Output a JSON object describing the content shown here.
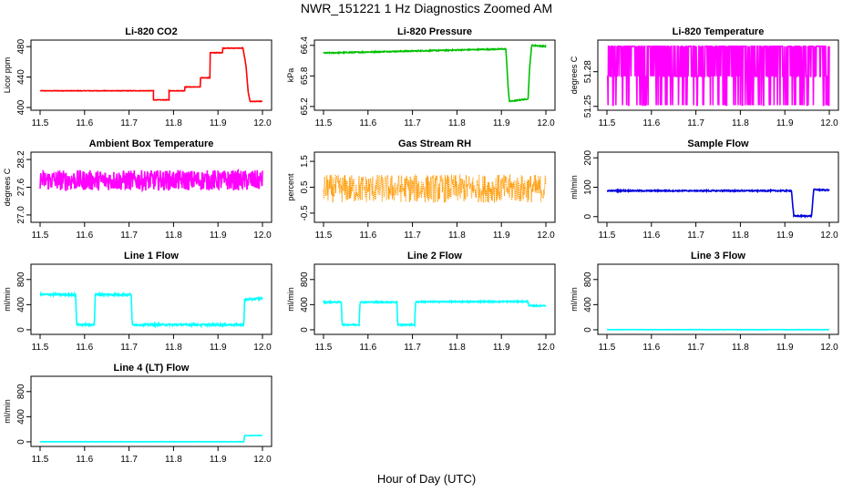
{
  "page": {
    "title": "NWR_151221  1 Hz Diagnostics Zoomed AM",
    "x_caption": "Hour of Day (UTC)"
  },
  "chart_data": [
    {
      "type": "line",
      "title": "Li-820 CO2",
      "ylabel": "Licor ppm",
      "color": "#ff0000",
      "xlim": [
        11.5,
        12.0
      ],
      "ylim": [
        400,
        485
      ],
      "x_ticks": [
        "11.5",
        "11.6",
        "11.7",
        "11.8",
        "11.9",
        "12.0"
      ],
      "y_ticks": [
        {
          "value": 400,
          "label": "400"
        },
        {
          "value": 440,
          "label": "440"
        },
        {
          "value": 480,
          "label": "480"
        }
      ],
      "noise": 0.3,
      "segments": [
        {
          "x": [
            11.5,
            11.755
          ],
          "y": [
            422,
            422
          ]
        },
        {
          "x": [
            11.755,
            11.755,
            11.79,
            11.79
          ],
          "y": [
            422,
            410,
            410,
            422
          ]
        },
        {
          "x": [
            11.79,
            11.825,
            11.825,
            11.86,
            11.86,
            11.882,
            11.882,
            11.91,
            11.91,
            11.956,
            11.963,
            11.968,
            11.972,
            12.0
          ],
          "y": [
            422,
            422,
            427,
            427,
            439,
            439,
            472,
            472,
            478,
            478,
            455,
            420,
            408,
            408
          ]
        }
      ]
    },
    {
      "type": "line",
      "title": "Li-820 Pressure",
      "ylabel": "kPa",
      "color": "#00c000",
      "xlim": [
        11.5,
        12.0
      ],
      "ylim": [
        65.18,
        66.45
      ],
      "x_ticks": [
        "11.5",
        "11.6",
        "11.7",
        "11.8",
        "11.9",
        "12.0"
      ],
      "y_ticks": [
        {
          "value": 65.2,
          "label": "65.2"
        },
        {
          "value": 65.8,
          "label": "65.8"
        },
        {
          "value": 66.4,
          "label": "66.4"
        }
      ],
      "noise": 0.01,
      "segments": [
        {
          "x": [
            11.5,
            11.91,
            11.915,
            11.918,
            11.96,
            11.963,
            11.968,
            12.0
          ],
          "y": [
            66.25,
            66.33,
            65.6,
            65.3,
            65.35,
            65.9,
            66.4,
            66.38
          ]
        }
      ]
    },
    {
      "type": "line",
      "title": "Li-820 Temperature",
      "ylabel": "degrees C",
      "color": "#ff00ff",
      "xlim": [
        11.5,
        12.0
      ],
      "ylim": [
        51.249,
        51.305
      ],
      "x_ticks": [
        "11.5",
        "11.6",
        "11.7",
        "11.8",
        "11.9",
        "12.0"
      ],
      "y_ticks": [
        {
          "value": 51.25,
          "label": "51.25"
        },
        {
          "value": 51.28,
          "label": "51.28"
        }
      ],
      "quantized": [
        51.251,
        51.276,
        51.302
      ],
      "segments": [
        {
          "x": [
            11.5,
            12.0
          ],
          "y": [
            51.276,
            51.276
          ]
        }
      ]
    },
    {
      "type": "line",
      "title": "Ambient Box Temperature",
      "ylabel": "degrees C",
      "color": "#ff00ff",
      "xlim": [
        11.5,
        12.0
      ],
      "ylim": [
        26.9,
        28.3
      ],
      "x_ticks": [
        "11.5",
        "11.6",
        "11.7",
        "11.8",
        "11.9",
        "12.0"
      ],
      "y_ticks": [
        {
          "value": 27.0,
          "label": "27.0"
        },
        {
          "value": 27.6,
          "label": "27.6"
        },
        {
          "value": 28.2,
          "label": "28.2"
        }
      ],
      "noise": 0.22,
      "segments": [
        {
          "x": [
            11.5,
            12.0
          ],
          "y": [
            27.75,
            27.75
          ]
        }
      ]
    },
    {
      "type": "line",
      "title": "Gas Stream RH",
      "ylabel": "percent",
      "color": "#ff9900",
      "xlim": [
        11.5,
        12.0
      ],
      "ylim": [
        -0.75,
        1.75
      ],
      "x_ticks": [
        "11.5",
        "11.6",
        "11.7",
        "11.8",
        "11.9",
        "12.0"
      ],
      "y_ticks": [
        {
          "value": -0.5,
          "label": "-0.5"
        },
        {
          "value": 0.5,
          "label": "0.5"
        },
        {
          "value": 1.5,
          "label": "1.5"
        }
      ],
      "noise": 0.55,
      "dotted": true,
      "segments": [
        {
          "x": [
            11.5,
            12.0
          ],
          "y": [
            0.45,
            0.45
          ]
        }
      ]
    },
    {
      "type": "line",
      "title": "Sample Flow",
      "ylabel": "ml/min",
      "color": "#0000dd",
      "xlim": [
        11.5,
        12.0
      ],
      "ylim": [
        -10,
        210
      ],
      "x_ticks": [
        "11.5",
        "11.6",
        "11.7",
        "11.8",
        "11.9",
        "12.0"
      ],
      "y_ticks": [
        {
          "value": 0,
          "label": "0"
        },
        {
          "value": 100,
          "label": "100"
        },
        {
          "value": 200,
          "label": "200"
        }
      ],
      "noise": 2,
      "segments": [
        {
          "x": [
            11.5,
            11.915,
            11.92,
            11.96,
            11.965,
            12.0
          ],
          "y": [
            88,
            88,
            2,
            2,
            92,
            90
          ]
        }
      ]
    },
    {
      "type": "line",
      "title": "Line 1 Flow",
      "ylabel": "ml/min",
      "color": "#00ffff",
      "xlim": [
        11.5,
        12.0
      ],
      "ylim": [
        -30,
        1000
      ],
      "x_ticks": [
        "11.5",
        "11.6",
        "11.7",
        "11.8",
        "11.9",
        "12.0"
      ],
      "y_ticks": [
        {
          "value": 0,
          "label": "0"
        },
        {
          "value": 400,
          "label": "400"
        },
        {
          "value": 800,
          "label": "800"
        }
      ],
      "noise": 15,
      "segments": [
        {
          "x": [
            11.5,
            11.58,
            11.582,
            11.622,
            11.624,
            11.705,
            11.707,
            11.958,
            11.96,
            12.0
          ],
          "y": [
            560,
            560,
            80,
            80,
            560,
            560,
            80,
            80,
            480,
            500
          ]
        }
      ]
    },
    {
      "type": "line",
      "title": "Line 2 Flow",
      "ylabel": "ml/min",
      "color": "#00ffff",
      "xlim": [
        11.5,
        12.0
      ],
      "ylim": [
        -30,
        1000
      ],
      "x_ticks": [
        "11.5",
        "11.6",
        "11.7",
        "11.8",
        "11.9",
        "12.0"
      ],
      "y_ticks": [
        {
          "value": 0,
          "label": "0"
        },
        {
          "value": 400,
          "label": "400"
        },
        {
          "value": 800,
          "label": "800"
        }
      ],
      "noise": 10,
      "segments": [
        {
          "x": [
            11.5,
            11.54,
            11.542,
            11.58,
            11.582,
            11.665,
            11.667,
            11.705,
            11.707,
            11.96,
            11.962,
            12.0
          ],
          "y": [
            440,
            440,
            80,
            80,
            440,
            440,
            80,
            80,
            445,
            450,
            380,
            385
          ]
        }
      ]
    },
    {
      "type": "line",
      "title": "Line 3 Flow",
      "ylabel": "ml/min",
      "color": "#00ffff",
      "xlim": [
        11.5,
        12.0
      ],
      "ylim": [
        -30,
        1000
      ],
      "x_ticks": [
        "11.5",
        "11.6",
        "11.7",
        "11.8",
        "11.9",
        "12.0"
      ],
      "y_ticks": [
        {
          "value": 0,
          "label": "0"
        },
        {
          "value": 400,
          "label": "400"
        },
        {
          "value": 800,
          "label": "800"
        }
      ],
      "noise": 2,
      "segments": [
        {
          "x": [
            11.5,
            12.0
          ],
          "y": [
            2,
            2
          ]
        }
      ]
    },
    {
      "type": "line",
      "title": "Line 4 (LT) Flow",
      "ylabel": "ml/min",
      "color": "#00ffff",
      "xlim": [
        11.5,
        12.0
      ],
      "ylim": [
        -30,
        1000
      ],
      "x_ticks": [
        "11.5",
        "11.6",
        "11.7",
        "11.8",
        "11.9",
        "12.0"
      ],
      "y_ticks": [
        {
          "value": 0,
          "label": "0"
        },
        {
          "value": 400,
          "label": "400"
        },
        {
          "value": 800,
          "label": "800"
        }
      ],
      "noise": 2,
      "segments": [
        {
          "x": [
            11.5,
            11.958,
            11.96,
            12.0
          ],
          "y": [
            2,
            2,
            100,
            102
          ]
        }
      ]
    }
  ]
}
